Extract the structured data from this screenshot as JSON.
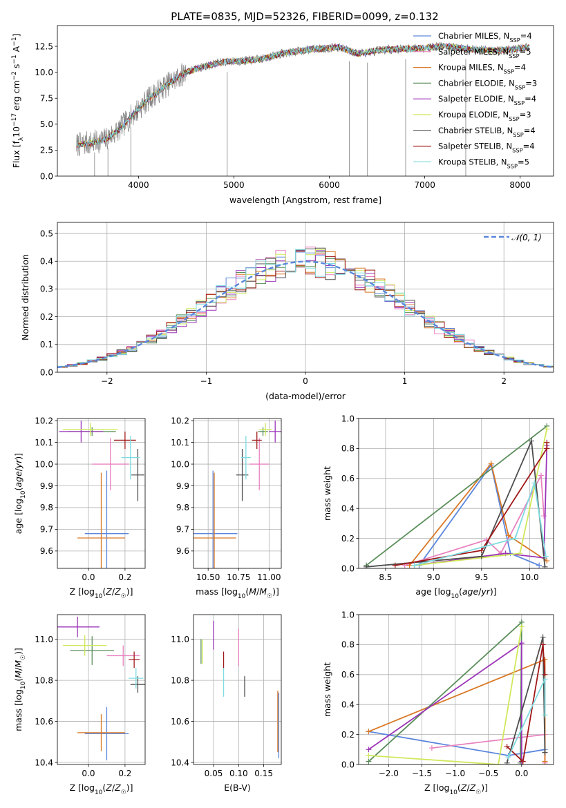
{
  "figure": {
    "title": "PLATE=0835, MJD=52326, FIBERID=0099, z=0.132"
  },
  "colors": {
    "Chabrier MILES": "#5b86dc",
    "Salpeter MILES": "#e882c0",
    "Kroupa MILES": "#d97825",
    "Chabrier ELODIE": "#5a8d5a",
    "Salpeter ELODIE": "#9b34b8",
    "Kroupa ELODIE": "#cfe85a",
    "Chabrier STELIB": "#4d4d4d",
    "Salpeter STELIB": "#a01818",
    "Kroupa STELIB": "#7edbe0",
    "data": "#808080",
    "normal": "#5b86dc"
  },
  "chart_data": [
    {
      "id": "spectrum",
      "type": "line",
      "xlabel": "wavelength [Angstrom, rest frame]",
      "ylabel": "Flux [fλ10⁻¹⁷ erg cm⁻² s⁻¹ A⁻¹]",
      "xlim": [
        3150,
        8350
      ],
      "ylim": [
        0,
        14.5
      ],
      "xticks": [
        4000,
        5000,
        6000,
        7000,
        8000
      ],
      "yticks": [
        0.0,
        2.5,
        5.0,
        7.5,
        10.0,
        12.5
      ],
      "grid": false,
      "legend_position": "top-right",
      "legend": [
        {
          "name": "Chabrier MILES",
          "sub": "SSP",
          "n": "4"
        },
        {
          "name": "Salpeter MILES",
          "sub": "SSP",
          "n": "5"
        },
        {
          "name": "Kroupa MILES",
          "sub": "SSP",
          "n": "4"
        },
        {
          "name": "Chabrier ELODIE",
          "sub": "SSP",
          "n": "3"
        },
        {
          "name": "Salpeter ELODIE",
          "sub": "SSP",
          "n": "4"
        },
        {
          "name": "Kroupa ELODIE",
          "sub": "SSP",
          "n": "3"
        },
        {
          "name": "Chabrier STELIB",
          "sub": "SSP",
          "n": "4"
        },
        {
          "name": "Salpeter STELIB",
          "sub": "SSP",
          "n": "4"
        },
        {
          "name": "Kroupa STELIB",
          "sub": "SSP",
          "n": "5"
        }
      ],
      "continuum": {
        "x": [
          3350,
          3500,
          3650,
          3800,
          3950,
          4100,
          4300,
          4500,
          4700,
          4900,
          5100,
          5300,
          5500,
          5800,
          6100,
          6300,
          6600,
          6900,
          7200,
          7500,
          7800,
          8100
        ],
        "y": [
          3.0,
          3.2,
          3.5,
          4.5,
          6.0,
          7.4,
          8.8,
          10.0,
          10.6,
          11.0,
          11.1,
          11.3,
          11.8,
          12.2,
          12.4,
          11.8,
          12.2,
          12.3,
          12.5,
          12.2,
          12.1,
          12.4
        ]
      },
      "bad_pixels": {
        "x": [
          3540,
          3680,
          3920,
          4930,
          6210,
          6400,
          6800,
          7430
        ],
        "y": [
          0,
          0,
          0,
          0,
          0,
          0,
          0,
          0
        ]
      }
    },
    {
      "id": "residuals",
      "type": "line",
      "xlabel": "(data-model)/error",
      "ylabel": "Normed distribution",
      "xlim": [
        -2.5,
        2.5
      ],
      "ylim": [
        0,
        0.54
      ],
      "xticks": [
        -2,
        -1,
        0,
        1,
        2
      ],
      "yticks": [
        0.0,
        0.1,
        0.2,
        0.3,
        0.4,
        0.5
      ],
      "grid": true,
      "legend_position": "top-right",
      "legend_label": "𝒩(0, 1)",
      "bin_width": 0.1,
      "normal_curve": {
        "mean": 0,
        "sigma": 1
      }
    },
    {
      "id": "age-vs-Z",
      "type": "scatter",
      "xlabel": "Z [log10(Z/Z☉)]",
      "ylabel": "age  [log10(age/yr)]",
      "xlim": [
        -0.17,
        0.31
      ],
      "ylim": [
        9.52,
        10.21
      ],
      "xticks": [
        0.0,
        0.2
      ],
      "yticks": [
        9.6,
        9.7,
        9.8,
        9.9,
        10.0,
        10.1,
        10.2
      ],
      "series": [
        {
          "model": "Chabrier MILES",
          "x": 0.1,
          "xerr": 0.12,
          "y": 9.68,
          "yerr": 0.29
        },
        {
          "model": "Kroupa MILES",
          "x": 0.07,
          "xerr": 0.13,
          "y": 9.66,
          "yerr": 0.3
        },
        {
          "model": "Salpeter MILES",
          "x": 0.12,
          "xerr": 0.1,
          "y": 10.0,
          "yerr": 0.12
        },
        {
          "model": "Chabrier ELODIE",
          "x": 0.02,
          "xerr": 0.13,
          "y": 10.15,
          "yerr": 0.02
        },
        {
          "model": "Salpeter ELODIE",
          "x": -0.04,
          "xerr": 0.12,
          "y": 10.15,
          "yerr": 0.05
        },
        {
          "model": "Kroupa ELODIE",
          "x": 0.01,
          "xerr": 0.15,
          "y": 10.16,
          "yerr": 0.03
        },
        {
          "model": "Chabrier STELIB",
          "x": 0.27,
          "xerr": 0.035,
          "y": 9.95,
          "yerr": 0.12
        },
        {
          "model": "Salpeter STELIB",
          "x": 0.2,
          "xerr": 0.06,
          "y": 10.11,
          "yerr": 0.04
        },
        {
          "model": "Kroupa STELIB",
          "x": 0.23,
          "xerr": 0.05,
          "y": 10.03,
          "yerr": 0.1
        }
      ]
    },
    {
      "id": "age-vs-mass",
      "type": "scatter",
      "xlabel": "mass [log10(M/M☉)]",
      "ylabel": "",
      "xlim": [
        10.38,
        11.1
      ],
      "ylim": [
        9.52,
        10.21
      ],
      "xticks": [
        10.5,
        10.75,
        11.0
      ],
      "yticks": [
        9.6,
        9.7,
        9.8,
        9.9,
        10.0,
        10.1,
        10.2
      ],
      "series": [
        {
          "model": "Chabrier MILES",
          "x": 10.54,
          "xerr": 0.2,
          "y": 9.68,
          "yerr": 0.29
        },
        {
          "model": "Kroupa MILES",
          "x": 10.55,
          "xerr": 0.18,
          "y": 9.66,
          "yerr": 0.3
        },
        {
          "model": "Salpeter MILES",
          "x": 10.92,
          "xerr": 0.08,
          "y": 10.0,
          "yerr": 0.12
        },
        {
          "model": "Chabrier ELODIE",
          "x": 10.95,
          "xerr": 0.04,
          "y": 10.15,
          "yerr": 0.02
        },
        {
          "model": "Salpeter ELODIE",
          "x": 11.05,
          "xerr": 0.05,
          "y": 10.15,
          "yerr": 0.05
        },
        {
          "model": "Kroupa ELODIE",
          "x": 10.97,
          "xerr": 0.05,
          "y": 10.16,
          "yerr": 0.03
        },
        {
          "model": "Chabrier STELIB",
          "x": 10.78,
          "xerr": 0.05,
          "y": 9.95,
          "yerr": 0.12
        },
        {
          "model": "Salpeter STELIB",
          "x": 10.9,
          "xerr": 0.04,
          "y": 10.11,
          "yerr": 0.04
        },
        {
          "model": "Kroupa STELIB",
          "x": 10.81,
          "xerr": 0.04,
          "y": 10.03,
          "yerr": 0.1
        }
      ]
    },
    {
      "id": "weight-vs-age",
      "type": "line",
      "xlabel": "age  [log10(age/yr)]",
      "ylabel": "mass weight",
      "xlim": [
        8.22,
        10.25
      ],
      "ylim": [
        0,
        1.0
      ],
      "xticks": [
        8.5,
        9.0,
        9.5,
        10.0
      ],
      "yticks": [
        0.0,
        0.2,
        0.4,
        0.6,
        0.8,
        1.0
      ],
      "grid": true,
      "series": [
        {
          "model": "Chabrier MILES",
          "x": [
            8.85,
            9.6,
            9.8,
            10.1
          ],
          "y": [
            0.02,
            0.69,
            0.1,
            0.02
          ]
        },
        {
          "model": "Salpeter MILES",
          "x": [
            8.7,
            9.55,
            9.7,
            10.12,
            10.15
          ],
          "y": [
            0.02,
            0.19,
            0.1,
            0.62,
            0.35
          ]
        },
        {
          "model": "Kroupa MILES",
          "x": [
            8.75,
            9.6,
            9.78,
            10.18
          ],
          "y": [
            0.02,
            0.7,
            0.22,
            0.05
          ]
        },
        {
          "model": "Chabrier ELODIE",
          "x": [
            8.3,
            10.18
          ],
          "y": [
            0.02,
            0.95
          ]
        },
        {
          "model": "Salpeter ELODIE",
          "x": [
            8.8,
            9.75,
            10.15,
            10.18
          ],
          "y": [
            0.02,
            0.1,
            0.07,
            0.82
          ]
        },
        {
          "model": "Kroupa ELODIE",
          "x": [
            8.8,
            9.9,
            10.18
          ],
          "y": [
            0.02,
            0.1,
            0.93
          ]
        },
        {
          "model": "Chabrier STELIB",
          "x": [
            8.3,
            9.5,
            10.02,
            10.16
          ],
          "y": [
            0.01,
            0.08,
            0.85,
            0.01
          ]
        },
        {
          "model": "Salpeter STELIB",
          "x": [
            8.6,
            9.5,
            10.18,
            10.18
          ],
          "y": [
            0.02,
            0.12,
            0.8,
            0.84
          ]
        },
        {
          "model": "Kroupa STELIB",
          "x": [
            8.8,
            9.85,
            10.05,
            10.17
          ],
          "y": [
            0.02,
            0.2,
            0.57,
            0.08
          ]
        }
      ]
    },
    {
      "id": "mass-vs-Z",
      "type": "scatter",
      "xlabel": "Z [log10(Z/Z☉)]",
      "ylabel": "mass [log10(M/M☉)]",
      "xlim": [
        -0.17,
        0.31
      ],
      "ylim": [
        10.39,
        11.12
      ],
      "xticks": [
        0.0,
        0.2
      ],
      "yticks": [
        10.4,
        10.6,
        10.8,
        11.0
      ],
      "series": [
        {
          "model": "Chabrier MILES",
          "x": 0.1,
          "xerr": 0.12,
          "y": 10.54,
          "yerr": 0.13
        },
        {
          "model": "Kroupa MILES",
          "x": 0.07,
          "xerr": 0.13,
          "y": 10.545,
          "yerr": 0.09
        },
        {
          "model": "Salpeter MILES",
          "x": 0.19,
          "xerr": 0.09,
          "y": 10.92,
          "yerr": 0.05
        },
        {
          "model": "Chabrier ELODIE",
          "x": 0.02,
          "xerr": 0.12,
          "y": 10.945,
          "yerr": 0.07
        },
        {
          "model": "Salpeter ELODIE",
          "x": -0.06,
          "xerr": 0.12,
          "y": 11.06,
          "yerr": 0.05
        },
        {
          "model": "Kroupa ELODIE",
          "x": -0.02,
          "xerr": 0.12,
          "y": 10.97,
          "yerr": 0.05
        },
        {
          "model": "Chabrier STELIB",
          "x": 0.27,
          "xerr": 0.04,
          "y": 10.78,
          "yerr": 0.04
        },
        {
          "model": "Salpeter STELIB",
          "x": 0.25,
          "xerr": 0.03,
          "y": 10.9,
          "yerr": 0.04
        },
        {
          "model": "Kroupa STELIB",
          "x": 0.26,
          "xerr": 0.04,
          "y": 10.81,
          "yerr": 0.05
        }
      ]
    },
    {
      "id": "mass-vs-EBV",
      "type": "scatter",
      "xlabel": "E(B-V)",
      "ylabel": "",
      "xlim": [
        0.01,
        0.185
      ],
      "ylim": [
        10.39,
        11.12
      ],
      "xticks": [
        0.05,
        0.1,
        0.15
      ],
      "yticks": [
        10.4,
        10.6,
        10.8,
        11.0
      ],
      "series": [
        {
          "model": "Chabrier MILES",
          "x": 0.18,
          "xerr": 0,
          "y": 10.58,
          "yerr": 0.16
        },
        {
          "model": "Kroupa MILES",
          "x": 0.178,
          "xerr": 0,
          "y": 10.6,
          "yerr": 0.15
        },
        {
          "model": "Salpeter MILES",
          "x": 0.1,
          "xerr": 0,
          "y": 10.96,
          "yerr": 0.09
        },
        {
          "model": "Chabrier ELODIE",
          "x": 0.025,
          "xerr": 0,
          "y": 10.94,
          "yerr": 0.06
        },
        {
          "model": "Salpeter ELODIE",
          "x": 0.05,
          "xerr": 0,
          "y": 11.02,
          "yerr": 0.07
        },
        {
          "model": "Kroupa ELODIE",
          "x": 0.028,
          "xerr": 0,
          "y": 10.94,
          "yerr": 0.06
        },
        {
          "model": "Chabrier STELIB",
          "x": 0.112,
          "xerr": 0,
          "y": 10.77,
          "yerr": 0.05
        },
        {
          "model": "Salpeter STELIB",
          "x": 0.07,
          "xerr": 0,
          "y": 10.9,
          "yerr": 0.04
        },
        {
          "model": "Kroupa STELIB",
          "x": 0.07,
          "xerr": 0,
          "y": 10.79,
          "yerr": 0.07
        }
      ]
    },
    {
      "id": "weight-vs-Z",
      "type": "line",
      "xlabel": "Z [log10(Z/Z☉)]",
      "ylabel": "mass weight",
      "xlim": [
        -2.45,
        0.48
      ],
      "ylim": [
        0,
        1.0
      ],
      "xticks": [
        -2.0,
        -1.5,
        -1.0,
        -0.5,
        0.0
      ],
      "yticks": [
        0.0,
        0.2,
        0.4,
        0.6,
        0.8,
        1.0
      ],
      "grid": true,
      "series": [
        {
          "model": "Chabrier MILES",
          "x": [
            -2.3,
            -0.2,
            0.35
          ],
          "y": [
            0.22,
            0.06,
            0.1
          ]
        },
        {
          "model": "Salpeter MILES",
          "x": [
            -1.35,
            0.35,
            0.35
          ],
          "y": [
            0.11,
            0.2,
            0.01
          ]
        },
        {
          "model": "Kroupa MILES",
          "x": [
            -2.3,
            0.35,
            0.35
          ],
          "y": [
            0.22,
            0.7,
            0.02
          ]
        },
        {
          "model": "Chabrier ELODIE",
          "x": [
            -2.3,
            0.0,
            -0.02
          ],
          "y": [
            0.02,
            0.95,
            0.01
          ]
        },
        {
          "model": "Salpeter ELODIE",
          "x": [
            -2.3,
            0.0,
            0.0
          ],
          "y": [
            0.1,
            0.81,
            0.02
          ]
        },
        {
          "model": "Kroupa ELODIE",
          "x": [
            -2.3,
            -0.35,
            0.0
          ],
          "y": [
            0.06,
            0.0,
            0.92
          ]
        },
        {
          "model": "Chabrier STELIB",
          "x": [
            -0.22,
            0.32,
            0.35
          ],
          "y": [
            0.01,
            0.85,
            0.08
          ]
        },
        {
          "model": "Salpeter STELIB",
          "x": [
            -0.22,
            0.02,
            0.32,
            0.35
          ],
          "y": [
            0.12,
            0.02,
            0.8,
            0.6
          ]
        },
        {
          "model": "Kroupa STELIB",
          "x": [
            -0.2,
            0.35,
            0.35
          ],
          "y": [
            0.05,
            0.57,
            0.33
          ]
        }
      ]
    }
  ]
}
